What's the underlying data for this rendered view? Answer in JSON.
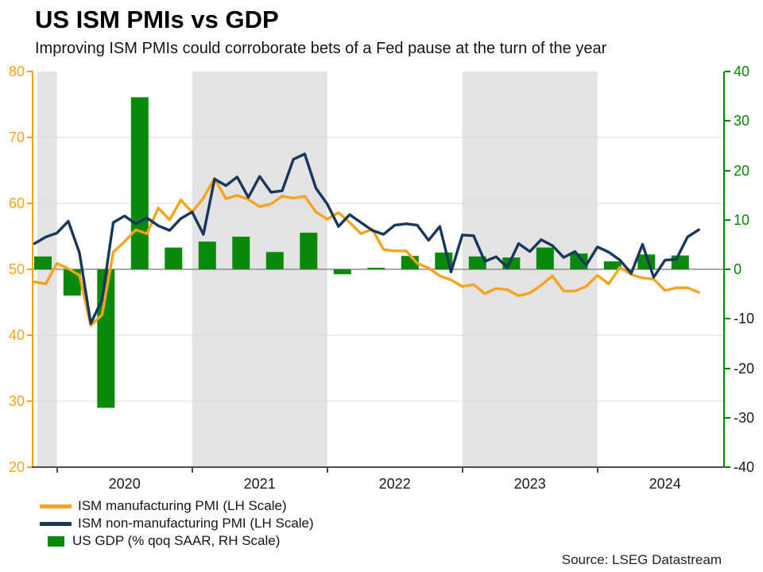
{
  "header": {
    "title": "US ISM PMIs vs GDP",
    "subtitle": "Improving ISM PMIs could corroborate bets of a Fed pause at the turn of the year"
  },
  "source": "Source: LSEG Datastream",
  "legend": {
    "items": [
      {
        "label": "ISM manufacturing PMI (LH Scale)",
        "swatch": "line",
        "color": "#F9A31C"
      },
      {
        "label": "ISM non-manufacturing PMI (LH Scale)",
        "swatch": "line",
        "color": "#17375D"
      },
      {
        "label": "US GDP (% qoq SAAR, RH Scale)",
        "swatch": "square",
        "color": "#0A8A0A"
      }
    ]
  },
  "axes": {
    "left": {
      "color": "#F9A31C",
      "ticks": [
        80,
        70,
        60,
        50,
        40,
        30,
        20
      ]
    },
    "right": {
      "color": "#008A00",
      "negative_label_color": "#1A1A1A",
      "ticks": [
        40,
        30,
        20,
        10,
        0,
        -10,
        -20,
        -30,
        -40
      ]
    },
    "bottom": {
      "color": "#4D4D4D",
      "label_color": "#1A1A1A",
      "labels": [
        "2020",
        "2021",
        "2022",
        "2023",
        "2024"
      ]
    }
  },
  "chart_data": {
    "type": "combo line + bar, dual axis",
    "title": "US ISM PMIs vs GDP",
    "x_monthly_start": "2019-11",
    "x_monthly_end": "2024-10",
    "left_axis": {
      "range": [
        20,
        80
      ],
      "tick_step": 10
    },
    "right_axis": {
      "range": [
        -40,
        40
      ],
      "tick_step": 10
    },
    "gridlines": {
      "left_values": [
        30,
        40,
        60,
        70
      ],
      "color": "#D9D9D9",
      "zero_line_left_value": 50,
      "zero_line_color": "#8C8C8C"
    },
    "shaded_bands": {
      "color": "#E3E3E3",
      "note": "alternate-year shading (2019 partial, 2021, 2023)",
      "month_ranges": [
        [
          -1.75,
          0
        ],
        [
          12,
          24
        ],
        [
          36,
          48
        ]
      ]
    },
    "series": [
      {
        "name": "ISM manufacturing PMI (LH Scale)",
        "type": "line",
        "axis": "left",
        "color": "#F9A31C",
        "frequency": "monthly",
        "values": [
          48.1,
          47.8,
          50.9,
          50.1,
          49.1,
          41.5,
          43.1,
          52.6,
          54.2,
          56.0,
          55.4,
          59.3,
          57.5,
          60.5,
          58.7,
          60.8,
          63.8,
          60.7,
          61.2,
          60.6,
          59.5,
          59.9,
          61.1,
          60.8,
          61.1,
          58.7,
          57.6,
          58.6,
          57.1,
          55.4,
          56.1,
          53.0,
          52.8,
          52.8,
          50.9,
          50.2,
          49.0,
          48.4,
          47.4,
          47.7,
          46.3,
          47.1,
          46.9,
          46.0,
          46.4,
          47.6,
          49.0,
          46.7,
          46.7,
          47.4,
          49.1,
          47.8,
          50.3,
          49.2,
          48.7,
          48.5,
          46.8,
          47.2,
          47.2,
          46.5
        ]
      },
      {
        "name": "ISM non-manufacturing PMI (LH Scale)",
        "type": "line",
        "axis": "left",
        "color": "#17375D",
        "frequency": "monthly",
        "values": [
          53.9,
          54.9,
          55.5,
          57.3,
          52.5,
          41.8,
          45.4,
          57.1,
          58.1,
          56.9,
          57.8,
          56.6,
          55.9,
          57.7,
          58.7,
          55.3,
          63.7,
          62.7,
          64.0,
          60.9,
          64.1,
          61.7,
          61.9,
          66.7,
          67.5,
          62.3,
          59.9,
          56.5,
          58.3,
          57.1,
          55.9,
          55.3,
          56.7,
          56.9,
          56.7,
          54.4,
          56.5,
          49.6,
          55.2,
          55.1,
          51.2,
          51.9,
          50.3,
          53.9,
          52.7,
          54.5,
          53.6,
          51.8,
          52.7,
          50.6,
          53.4,
          52.6,
          51.4,
          49.4,
          53.8,
          48.8,
          51.4,
          51.5,
          54.9,
          56.0
        ]
      },
      {
        "name": "US GDP (% qoq SAAR, RH Scale)",
        "type": "bar",
        "axis": "right",
        "color": "#0A8A0A",
        "frequency": "quarterly",
        "quarters": [
          "2019 Q4",
          "2020 Q1",
          "2020 Q2",
          "2020 Q3",
          "2020 Q4",
          "2021 Q1",
          "2021 Q2",
          "2021 Q3",
          "2021 Q4",
          "2022 Q1",
          "2022 Q2",
          "2022 Q3",
          "2022 Q4",
          "2023 Q1",
          "2023 Q2",
          "2023 Q3",
          "2023 Q4",
          "2024 Q1",
          "2024 Q2",
          "2024 Q3"
        ],
        "values": [
          2.6,
          -5.3,
          -28.0,
          34.8,
          4.4,
          5.6,
          6.6,
          3.5,
          7.4,
          -1.0,
          0.3,
          2.7,
          3.4,
          2.6,
          2.4,
          4.4,
          3.2,
          1.6,
          3.0,
          2.8
        ]
      }
    ]
  }
}
